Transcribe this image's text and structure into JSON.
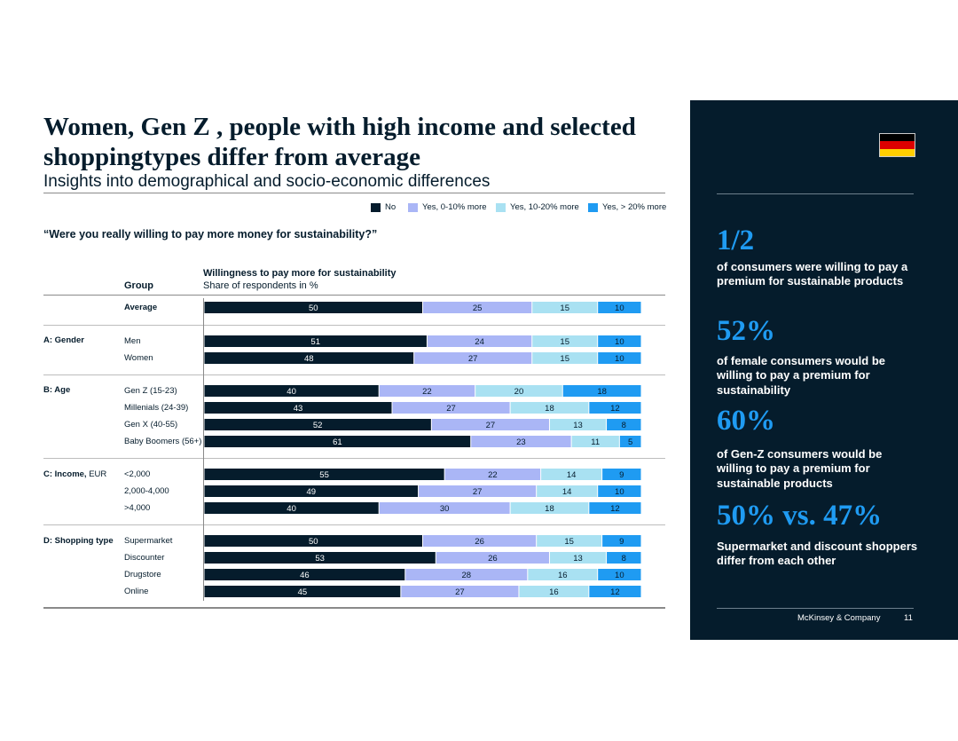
{
  "header": {
    "title": "Women, Gen Z , people with high income and selected shoppingtypes differ from average",
    "subtitle": "Insights into demographical and socio-economic differences"
  },
  "question": "“Were you really willing to pay more money for sustainability?”",
  "columns": {
    "group": "Group",
    "chart_title": "Willingness to pay more for sustainability",
    "chart_subtitle": "Share of respondents in %"
  },
  "colors": {
    "navy": "#051c2c",
    "lavender": "#aab6f6",
    "light_blue": "#a9e1f2",
    "blue": "#1f9bf2",
    "flag_black": "#000000",
    "flag_red": "#dd0000",
    "flag_gold": "#ffce00"
  },
  "chart_data": {
    "type": "bar",
    "orientation": "horizontal",
    "stacked": true,
    "xlim": [
      0,
      100
    ],
    "legend_position": "top-right",
    "series": [
      {
        "name": "No",
        "color": "#051c2c",
        "values": [
          50,
          51,
          48,
          40,
          43,
          52,
          61,
          55,
          49,
          40,
          50,
          53,
          46,
          45
        ]
      },
      {
        "name": "Yes, 0-10% more",
        "color": "#aab6f6",
        "values": [
          25,
          24,
          27,
          22,
          27,
          27,
          23,
          22,
          27,
          30,
          26,
          26,
          28,
          27
        ]
      },
      {
        "name": "Yes, 10-20% more",
        "color": "#a9e1f2",
        "values": [
          15,
          15,
          15,
          20,
          18,
          13,
          11,
          14,
          14,
          18,
          15,
          13,
          16,
          16
        ]
      },
      {
        "name": "Yes, > 20% more",
        "color": "#1f9bf2",
        "values": [
          10,
          10,
          10,
          18,
          12,
          8,
          5,
          9,
          10,
          12,
          9,
          8,
          10,
          12
        ]
      }
    ],
    "categories": [
      "Average",
      "Men",
      "Women",
      "Gen Z (15-23)",
      "Millenials (24-39)",
      "Gen X (40-55)",
      "Baby Boomers (56+)",
      "<2,000",
      "2,000-4,000",
      ">4,000",
      "Supermarket",
      "Discounter",
      "Drugstore",
      "Online"
    ],
    "groups": [
      {
        "label": "",
        "unit": "",
        "rows": [
          0
        ]
      },
      {
        "label": "A: Gender",
        "unit": "",
        "rows": [
          1,
          2
        ]
      },
      {
        "label": "B: Age",
        "unit": "",
        "rows": [
          3,
          4,
          5,
          6
        ]
      },
      {
        "label": "C: Income,",
        "unit": " EUR",
        "rows": [
          7,
          8,
          9
        ]
      },
      {
        "label": "D: Shopping type",
        "unit": "",
        "rows": [
          10,
          11,
          12,
          13
        ]
      }
    ]
  },
  "panel": {
    "stats": [
      {
        "value": "1/2",
        "text": "of consumers were willing to pay a premium for sustainable products"
      },
      {
        "value": "52%",
        "text": "of female consumers would be willing to pay a premium for sustainability"
      },
      {
        "value": "60%",
        "text": "of Gen-Z consumers would be willing to pay a premium for sustainable products"
      },
      {
        "value": "50% vs. 47%",
        "text": "Supermarket and discount shoppers differ from each other"
      }
    ],
    "footer": "McKinsey & Company",
    "page_number": "11"
  }
}
